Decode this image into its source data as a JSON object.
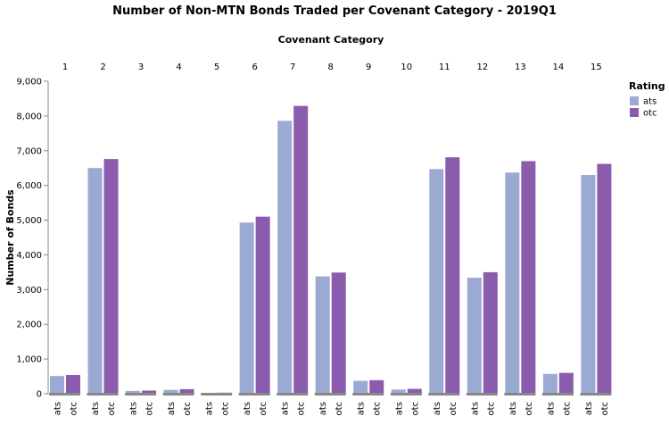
{
  "chart_data": {
    "type": "bar",
    "title": "Number of Non-MTN Bonds Traded per Covenant Category - 2019Q1",
    "facet_title": "Covenant Category",
    "categories": [
      "1",
      "2",
      "3",
      "4",
      "5",
      "6",
      "7",
      "8",
      "9",
      "10",
      "11",
      "12",
      "13",
      "14",
      "15"
    ],
    "sub_categories": [
      "ats",
      "otc"
    ],
    "ylabel": "Number of Bonds",
    "ylim": [
      0,
      9000
    ],
    "yticks": [
      "0",
      "1,000",
      "2,000",
      "3,000",
      "4,000",
      "5,000",
      "6,000",
      "7,000",
      "8,000",
      "9,000"
    ],
    "grid": false,
    "legend": {
      "title": "Rating",
      "position": "top-right"
    },
    "series": [
      {
        "name": "ats",
        "color": "#9aaad2",
        "values": [
          510,
          6500,
          80,
          110,
          20,
          4930,
          7860,
          3380,
          370,
          120,
          6470,
          3340,
          6370,
          570,
          6300
        ]
      },
      {
        "name": "otc",
        "color": "#8b5cad",
        "values": [
          540,
          6760,
          90,
          130,
          30,
          5100,
          8290,
          3490,
          390,
          140,
          6810,
          3500,
          6700,
          600,
          6620
        ]
      }
    ]
  }
}
